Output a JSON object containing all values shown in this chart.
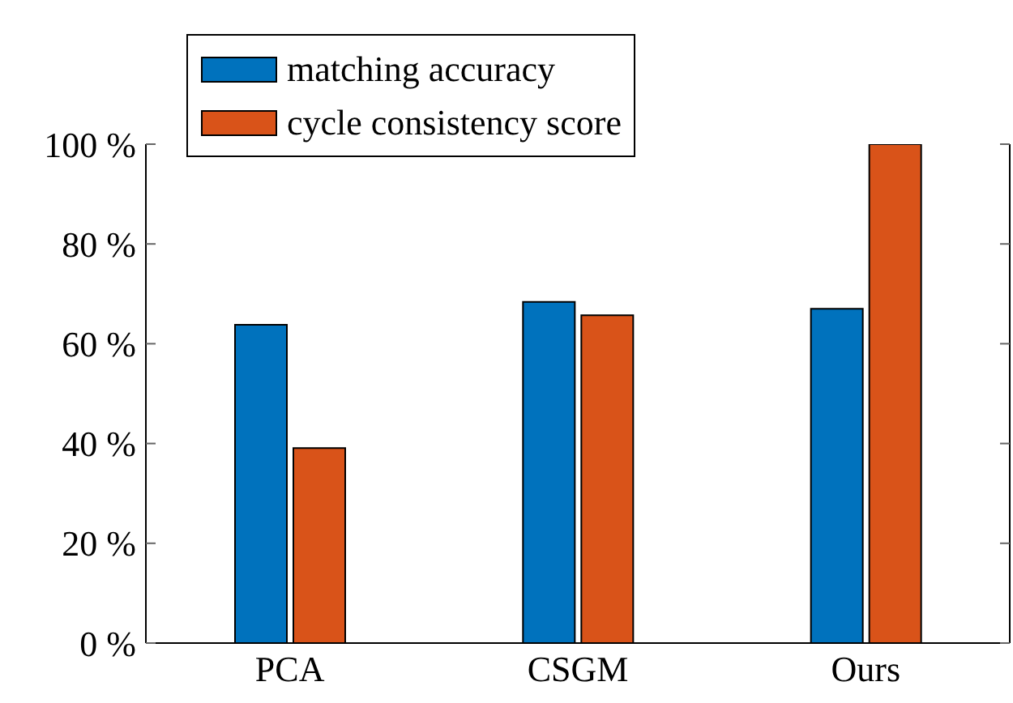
{
  "chart_data": {
    "type": "bar",
    "categories": [
      "PCA",
      "CSGM",
      "Ours"
    ],
    "series": [
      {
        "name": "matching accuracy",
        "color": "#0072bd",
        "values": [
          63.8,
          68.4,
          67.0
        ]
      },
      {
        "name": "cycle consistency score",
        "color": "#d95319",
        "values": [
          39.1,
          65.7,
          100
        ]
      }
    ],
    "ylim": [
      0,
      100
    ],
    "yticks": [
      {
        "value": 0,
        "label": "0 %"
      },
      {
        "value": 20,
        "label": "20 %"
      },
      {
        "value": 40,
        "label": "40 %"
      },
      {
        "value": 60,
        "label": "60 %"
      },
      {
        "value": 80,
        "label": "80 %"
      },
      {
        "value": 100,
        "label": "100 %"
      }
    ],
    "grid": false,
    "legend": "top left"
  }
}
